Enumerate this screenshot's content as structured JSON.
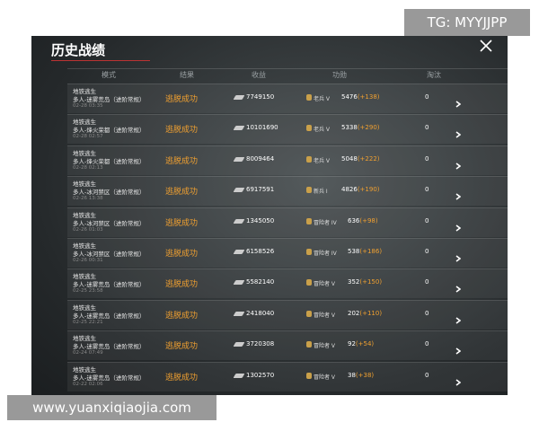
{
  "watermark_top": "TG: MYYJJPP",
  "watermark_bottom": "www.yuanxiqiaojia.com",
  "title": "历史战绩",
  "headers": [
    "模式",
    "结果",
    "收益",
    "功勋",
    "淘汰"
  ],
  "rows": [
    {
      "mode": "地铁逃生",
      "map": "多人-迷雾荒岛（进阶常规）",
      "time": "02-28 03:35",
      "result": "逃脱成功",
      "earnings": "7749150",
      "rank": "老兵 V",
      "merit": "5476",
      "gain": "(+138)",
      "kills": "0"
    },
    {
      "mode": "地铁逃生",
      "map": "多人-烽火荣都（进阶常规）",
      "time": "02-28 02:57",
      "result": "逃脱成功",
      "earnings": "10101690",
      "rank": "老兵 V",
      "merit": "5338",
      "gain": "(+290)",
      "kills": "0"
    },
    {
      "mode": "地铁逃生",
      "map": "多人-烽火荣都（进阶常规）",
      "time": "02-28 02:13",
      "result": "逃脱成功",
      "earnings": "8009464",
      "rank": "老兵 V",
      "merit": "5048",
      "gain": "(+222)",
      "kills": "0"
    },
    {
      "mode": "地铁逃生",
      "map": "多人-冰河禁区（进阶常规）",
      "time": "02-26 13:38",
      "result": "逃脱成功",
      "earnings": "6917591",
      "rank": "新兵 I",
      "merit": "4826",
      "gain": "(+190)",
      "kills": "0"
    },
    {
      "mode": "地铁逃生",
      "map": "多人-冰河禁区（进阶常规）",
      "time": "02-26 01:03",
      "result": "逃脱成功",
      "earnings": "1345050",
      "rank": "冒险者 IV",
      "merit": "636",
      "gain": "(+98)",
      "kills": "0"
    },
    {
      "mode": "地铁逃生",
      "map": "多人-冰河禁区（进阶常规）",
      "time": "02-26 00:31",
      "result": "逃脱成功",
      "earnings": "6158526",
      "rank": "冒险者 IV",
      "merit": "538",
      "gain": "(+186)",
      "kills": "0"
    },
    {
      "mode": "地铁逃生",
      "map": "多人-迷雾荒岛（进阶常规）",
      "time": "02-25 23:58",
      "result": "逃脱成功",
      "earnings": "5582140",
      "rank": "冒险者 V",
      "merit": "352",
      "gain": "(+150)",
      "kills": "0"
    },
    {
      "mode": "地铁逃生",
      "map": "多人-迷雾荒岛（进阶常规）",
      "time": "02-25 22:21",
      "result": "逃脱成功",
      "earnings": "2418040",
      "rank": "冒险者 V",
      "merit": "202",
      "gain": "(+110)",
      "kills": "0"
    },
    {
      "mode": "地铁逃生",
      "map": "多人-迷雾荒岛（进阶常规）",
      "time": "02-24 07:49",
      "result": "逃脱成功",
      "earnings": "3720308",
      "rank": "冒险者 V",
      "merit": "92",
      "gain": "(+54)",
      "kills": "0"
    },
    {
      "mode": "地铁逃生",
      "map": "多人-迷雾荒岛（进阶常规）",
      "time": "02-22 02:06",
      "result": "逃脱成功",
      "earnings": "1302570",
      "rank": "冒险者 V",
      "merit": "38",
      "gain": "(+38)",
      "kills": "0"
    }
  ]
}
